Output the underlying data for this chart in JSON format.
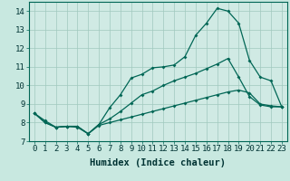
{
  "xlabel": "Humidex (Indice chaleur)",
  "ylabel": "",
  "background_color": "#c8e8e0",
  "plot_bg_color": "#d0eae4",
  "grid_color": "#a0c8be",
  "line_color": "#006655",
  "xlim": [
    -0.5,
    23.5
  ],
  "ylim": [
    7,
    14.5
  ],
  "yticks": [
    7,
    8,
    9,
    10,
    11,
    12,
    13,
    14
  ],
  "xticks": [
    0,
    1,
    2,
    3,
    4,
    5,
    6,
    7,
    8,
    9,
    10,
    11,
    12,
    13,
    14,
    15,
    16,
    17,
    18,
    19,
    20,
    21,
    22,
    23
  ],
  "line1_x": [
    0,
    1,
    2,
    3,
    4,
    5,
    6,
    7,
    8,
    9,
    10,
    11,
    12,
    13,
    14,
    15,
    16,
    17,
    18,
    19,
    20,
    21,
    22,
    23
  ],
  "line1_y": [
    8.5,
    8.1,
    7.75,
    7.8,
    7.8,
    7.4,
    7.9,
    8.8,
    9.5,
    10.4,
    10.6,
    10.95,
    11.0,
    11.1,
    11.55,
    12.7,
    13.35,
    14.15,
    14.0,
    13.35,
    11.35,
    10.45,
    10.25,
    8.85
  ],
  "line2_x": [
    0,
    1,
    2,
    3,
    4,
    5,
    6,
    7,
    8,
    9,
    10,
    11,
    12,
    13,
    14,
    15,
    16,
    17,
    18,
    19,
    20,
    21,
    22,
    23
  ],
  "line2_y": [
    8.5,
    8.0,
    7.75,
    7.8,
    7.8,
    7.4,
    7.9,
    8.2,
    8.6,
    9.05,
    9.5,
    9.7,
    10.0,
    10.25,
    10.45,
    10.65,
    10.9,
    11.15,
    11.45,
    10.45,
    9.4,
    8.95,
    8.85,
    8.85
  ],
  "line3_x": [
    0,
    1,
    2,
    3,
    4,
    5,
    6,
    7,
    8,
    9,
    10,
    11,
    12,
    13,
    14,
    15,
    16,
    17,
    18,
    19,
    20,
    21,
    22,
    23
  ],
  "line3_y": [
    8.5,
    8.0,
    7.75,
    7.8,
    7.75,
    7.4,
    7.85,
    8.0,
    8.15,
    8.3,
    8.45,
    8.6,
    8.75,
    8.9,
    9.05,
    9.2,
    9.35,
    9.5,
    9.65,
    9.75,
    9.6,
    9.0,
    8.9,
    8.85
  ],
  "marker_size": 2.0,
  "linewidth": 0.9,
  "font_size": 6.5
}
